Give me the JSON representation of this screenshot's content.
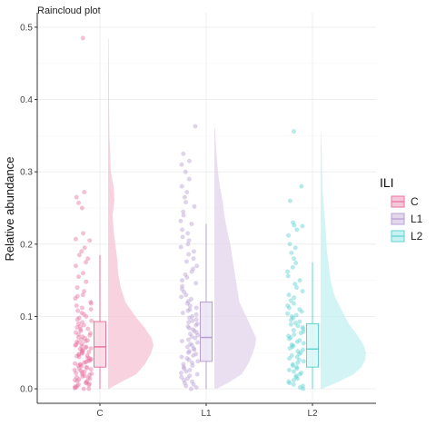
{
  "chart_data": {
    "type": "raincloud",
    "title": "Raincloud plot",
    "xlabel": "",
    "ylabel": "Relative abundance",
    "categories": [
      "C",
      "L1",
      "L2"
    ],
    "yticks": [
      0.0,
      0.1,
      0.2,
      0.3,
      0.4,
      0.5
    ],
    "ytick_labels": [
      "0.0",
      "0.1",
      "0.2",
      "0.3",
      "0.4",
      "0.5"
    ],
    "ylim": [
      -0.02,
      0.52
    ],
    "grid": true,
    "legend": {
      "title": "ILI",
      "position": "right",
      "entries": [
        "C",
        "L1",
        "L2"
      ]
    },
    "colors": {
      "C": "#e7769f",
      "L1": "#b99fd2",
      "L2": "#5fd3d3",
      "C_fill": "#f6c7d7",
      "L1_fill": "#e3d7ee",
      "L2_fill": "#c8f1f1"
    },
    "series": [
      {
        "name": "C",
        "box": {
          "min": 0.0,
          "q1": 0.03,
          "median": 0.058,
          "q3": 0.093,
          "max": 0.185
        },
        "density": [
          [
            0.0,
            0.02
          ],
          [
            0.01,
            0.3
          ],
          [
            0.02,
            0.62
          ],
          [
            0.035,
            0.82
          ],
          [
            0.05,
            0.95
          ],
          [
            0.06,
            1.0
          ],
          [
            0.07,
            0.96
          ],
          [
            0.085,
            0.8
          ],
          [
            0.1,
            0.6
          ],
          [
            0.12,
            0.38
          ],
          [
            0.14,
            0.28
          ],
          [
            0.16,
            0.22
          ],
          [
            0.18,
            0.2
          ],
          [
            0.2,
            0.16
          ],
          [
            0.22,
            0.12
          ],
          [
            0.24,
            0.1
          ],
          [
            0.26,
            0.14
          ],
          [
            0.28,
            0.12
          ],
          [
            0.3,
            0.06
          ],
          [
            0.35,
            0.03
          ],
          [
            0.4,
            0.02
          ],
          [
            0.45,
            0.015
          ],
          [
            0.485,
            0.01
          ]
        ],
        "points": [
          0.485,
          0.272,
          0.265,
          0.257,
          0.25,
          0.215,
          0.207,
          0.205,
          0.195,
          0.19,
          0.185,
          0.18,
          0.175,
          0.17,
          0.16,
          0.155,
          0.148,
          0.14,
          0.135,
          0.13,
          0.128,
          0.125,
          0.12,
          0.118,
          0.115,
          0.112,
          0.11,
          0.108,
          0.105,
          0.103,
          0.1,
          0.098,
          0.096,
          0.094,
          0.092,
          0.09,
          0.088,
          0.086,
          0.085,
          0.083,
          0.082,
          0.08,
          0.078,
          0.077,
          0.075,
          0.074,
          0.072,
          0.071,
          0.07,
          0.068,
          0.067,
          0.066,
          0.065,
          0.064,
          0.062,
          0.061,
          0.06,
          0.059,
          0.058,
          0.057,
          0.056,
          0.055,
          0.054,
          0.053,
          0.052,
          0.051,
          0.05,
          0.049,
          0.048,
          0.047,
          0.046,
          0.045,
          0.044,
          0.043,
          0.042,
          0.041,
          0.04,
          0.039,
          0.038,
          0.037,
          0.036,
          0.035,
          0.034,
          0.033,
          0.032,
          0.031,
          0.03,
          0.029,
          0.028,
          0.027,
          0.026,
          0.025,
          0.024,
          0.023,
          0.022,
          0.021,
          0.02,
          0.019,
          0.018,
          0.017,
          0.016,
          0.015,
          0.014,
          0.013,
          0.012,
          0.011,
          0.01,
          0.009,
          0.008,
          0.007,
          0.006,
          0.005,
          0.004,
          0.003,
          0.002,
          0.001,
          0.0,
          0.0
        ]
      },
      {
        "name": "L1",
        "box": {
          "min": 0.0,
          "q1": 0.038,
          "median": 0.071,
          "q3": 0.12,
          "max": 0.228
        },
        "density": [
          [
            0.0,
            0.05
          ],
          [
            0.01,
            0.35
          ],
          [
            0.02,
            0.6
          ],
          [
            0.035,
            0.75
          ],
          [
            0.05,
            0.85
          ],
          [
            0.06,
            0.9
          ],
          [
            0.07,
            0.92
          ],
          [
            0.08,
            0.85
          ],
          [
            0.1,
            0.7
          ],
          [
            0.12,
            0.55
          ],
          [
            0.14,
            0.5
          ],
          [
            0.16,
            0.45
          ],
          [
            0.18,
            0.4
          ],
          [
            0.2,
            0.35
          ],
          [
            0.22,
            0.28
          ],
          [
            0.24,
            0.22
          ],
          [
            0.26,
            0.18
          ],
          [
            0.28,
            0.12
          ],
          [
            0.3,
            0.08
          ],
          [
            0.33,
            0.04
          ],
          [
            0.36,
            0.015
          ]
        ],
        "points": [
          0.363,
          0.325,
          0.315,
          0.31,
          0.3,
          0.29,
          0.28,
          0.272,
          0.265,
          0.258,
          0.252,
          0.245,
          0.24,
          0.232,
          0.228,
          0.22,
          0.215,
          0.21,
          0.205,
          0.2,
          0.196,
          0.19,
          0.186,
          0.18,
          0.176,
          0.17,
          0.166,
          0.162,
          0.158,
          0.154,
          0.15,
          0.146,
          0.142,
          0.138,
          0.134,
          0.13,
          0.127,
          0.124,
          0.121,
          0.118,
          0.115,
          0.112,
          0.11,
          0.108,
          0.105,
          0.103,
          0.1,
          0.098,
          0.096,
          0.094,
          0.092,
          0.09,
          0.088,
          0.086,
          0.084,
          0.082,
          0.08,
          0.078,
          0.076,
          0.074,
          0.072,
          0.07,
          0.068,
          0.066,
          0.064,
          0.062,
          0.06,
          0.058,
          0.056,
          0.054,
          0.052,
          0.05,
          0.048,
          0.046,
          0.044,
          0.042,
          0.04,
          0.038,
          0.036,
          0.034,
          0.032,
          0.03,
          0.028,
          0.026,
          0.024,
          0.022,
          0.02,
          0.018,
          0.016,
          0.014,
          0.012,
          0.01,
          0.008,
          0.006,
          0.004,
          0.002,
          0.0
        ]
      },
      {
        "name": "L2",
        "box": {
          "min": 0.0,
          "q1": 0.03,
          "median": 0.055,
          "q3": 0.09,
          "max": 0.175
        },
        "density": [
          [
            0.0,
            0.03
          ],
          [
            0.01,
            0.4
          ],
          [
            0.02,
            0.72
          ],
          [
            0.03,
            0.9
          ],
          [
            0.04,
            0.98
          ],
          [
            0.05,
            1.0
          ],
          [
            0.06,
            0.95
          ],
          [
            0.075,
            0.8
          ],
          [
            0.09,
            0.62
          ],
          [
            0.11,
            0.45
          ],
          [
            0.13,
            0.3
          ],
          [
            0.15,
            0.22
          ],
          [
            0.17,
            0.18
          ],
          [
            0.19,
            0.14
          ],
          [
            0.21,
            0.12
          ],
          [
            0.23,
            0.1
          ],
          [
            0.25,
            0.07
          ],
          [
            0.28,
            0.04
          ],
          [
            0.32,
            0.025
          ],
          [
            0.356,
            0.01
          ]
        ],
        "points": [
          0.356,
          0.28,
          0.26,
          0.23,
          0.226,
          0.225,
          0.22,
          0.212,
          0.2,
          0.195,
          0.188,
          0.18,
          0.174,
          0.168,
          0.162,
          0.156,
          0.15,
          0.145,
          0.14,
          0.135,
          0.13,
          0.126,
          0.122,
          0.118,
          0.115,
          0.112,
          0.11,
          0.107,
          0.104,
          0.102,
          0.1,
          0.098,
          0.095,
          0.093,
          0.091,
          0.089,
          0.087,
          0.085,
          0.083,
          0.081,
          0.079,
          0.077,
          0.075,
          0.073,
          0.071,
          0.069,
          0.067,
          0.065,
          0.063,
          0.061,
          0.06,
          0.058,
          0.056,
          0.054,
          0.052,
          0.05,
          0.048,
          0.046,
          0.044,
          0.042,
          0.04,
          0.038,
          0.036,
          0.034,
          0.032,
          0.03,
          0.028,
          0.026,
          0.024,
          0.022,
          0.02,
          0.018,
          0.016,
          0.014,
          0.012,
          0.01,
          0.008,
          0.006,
          0.004,
          0.002,
          0.0
        ]
      }
    ]
  }
}
